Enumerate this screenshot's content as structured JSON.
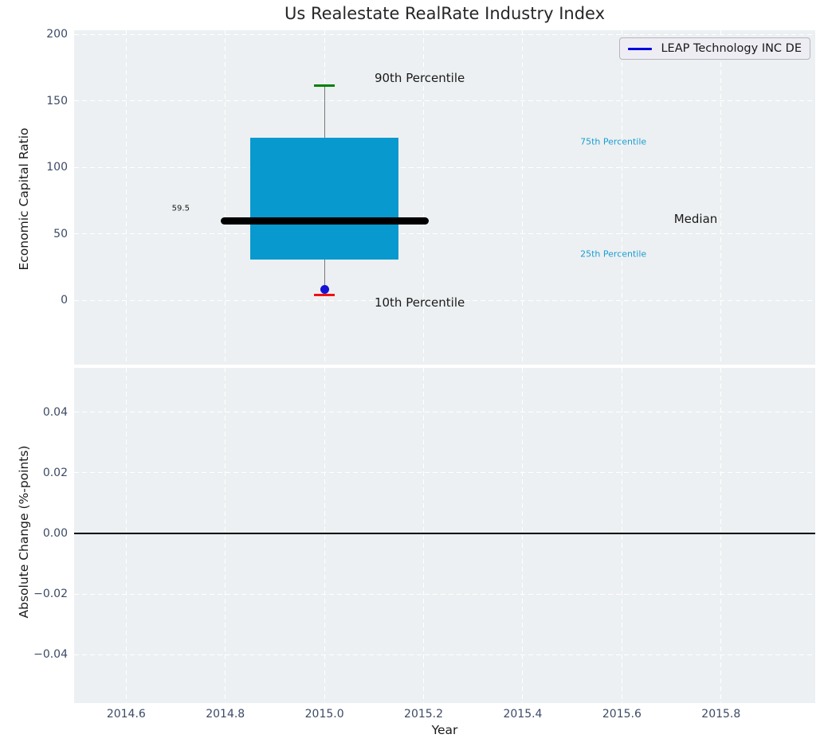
{
  "title": "Us Realestate RealRate Industry Index",
  "legend": {
    "series_label": "LEAP Technology INC DE",
    "line_color": "#0000dd"
  },
  "colors": {
    "axes_bg": "#edf0f2",
    "grid": "#ffffff",
    "box_fill": "#0899ce",
    "median_line": "#000000",
    "whisker": "#777777",
    "p90_cap": "#008000",
    "p10_cap": "#ee1111",
    "company_point": "#1414d6",
    "tick_label": "#3c4a66",
    "annotation_cyan": "#1b9ed2",
    "text": "#1a1a1a",
    "zero_line": "#000000"
  },
  "chart_data": [
    {
      "type": "box",
      "title": "Us Realestate RealRate Industry Index",
      "ylabel": "Economic Capital Ratio",
      "xlabel": "",
      "xlim": [
        2014.495,
        2015.99
      ],
      "ylim": [
        -48.5,
        203
      ],
      "yticks": [
        0,
        50,
        100,
        150,
        200
      ],
      "ytick_labels": [
        "0",
        "50",
        "100",
        "150",
        "200"
      ],
      "xticks": [
        2014.6,
        2014.8,
        2015.0,
        2015.2,
        2015.4,
        2015.6,
        2015.8
      ],
      "grid": "white-dashed",
      "legend_position": "upper right",
      "box": {
        "x": 2015.0,
        "box_left": 2014.85,
        "box_right": 2015.15,
        "median_left": 2014.79,
        "median_right": 2015.21,
        "cap_halfwidth": 0.021,
        "p10": 4,
        "p25": 30.5,
        "median": 59.5,
        "p75": 122,
        "p90": 161.5
      },
      "company_point": {
        "name": "LEAP Technology INC DE",
        "x": 2015.0,
        "y": 8
      },
      "median_value_label": "59.5",
      "annotations": [
        {
          "text": "90th Percentile",
          "x": 2015.101,
          "y": 167,
          "size": 15,
          "color": "#1a1a1a",
          "align": "left"
        },
        {
          "text": "10th Percentile",
          "x": 2015.101,
          "y": -2,
          "size": 15,
          "color": "#1a1a1a",
          "align": "left"
        },
        {
          "text": "75th Percentile",
          "x": 2015.516,
          "y": 119,
          "size": 11,
          "color": "#1b9ed2",
          "align": "left"
        },
        {
          "text": "25th Percentile",
          "x": 2015.516,
          "y": 34.5,
          "size": 11,
          "color": "#1b9ed2",
          "align": "left"
        },
        {
          "text": "Median",
          "x": 2015.705,
          "y": 61,
          "size": 15,
          "color": "#1a1a1a",
          "align": "left"
        },
        {
          "text": "59.5",
          "x": 2014.728,
          "y": 69,
          "size": 10,
          "color": "#1a1a1a",
          "align": "right"
        }
      ]
    },
    {
      "type": "line",
      "ylabel": "Absolute Change (%-points)",
      "xlabel": "Year",
      "xlim": [
        2014.495,
        2015.99
      ],
      "ylim": [
        -0.056,
        0.0547
      ],
      "yticks": [
        0.04,
        0.02,
        0,
        -0.02,
        -0.04
      ],
      "ytick_labels": [
        "0.04",
        "0.02",
        "0.00",
        "−0.02",
        "−0.04"
      ],
      "xticks": [
        2014.6,
        2014.8,
        2015.0,
        2015.2,
        2015.4,
        2015.6,
        2015.8
      ],
      "xtick_labels": [
        "2014.6",
        "2014.8",
        "2015.0",
        "2015.2",
        "2015.4",
        "2015.6",
        "2015.8"
      ],
      "grid": "white-dashed",
      "zero_line": 0.0,
      "series": []
    }
  ]
}
